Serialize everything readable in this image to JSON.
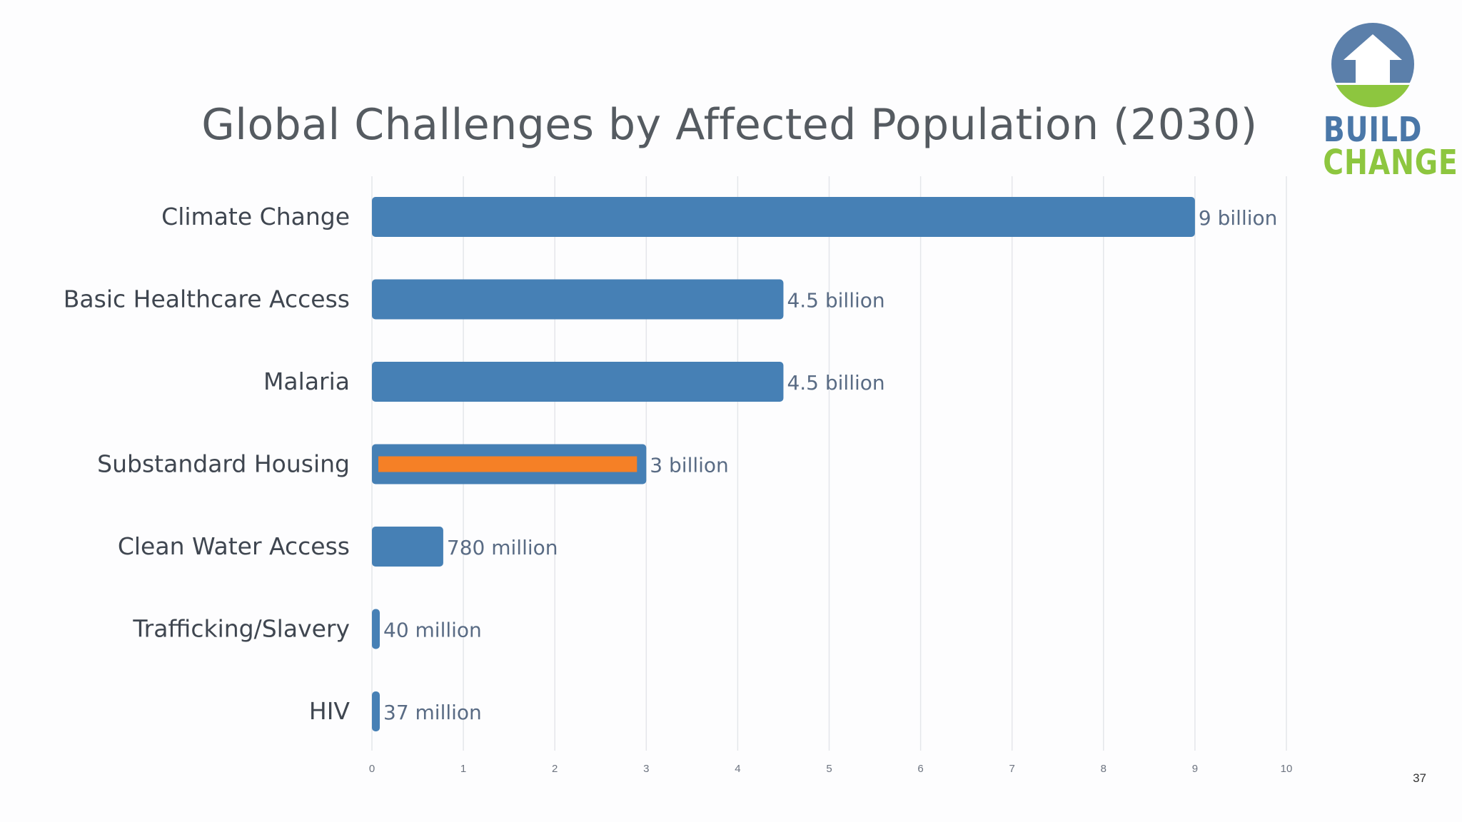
{
  "slide": {
    "page_number": "37"
  },
  "logo": {
    "line1": "BUILD",
    "line2": "CHANGE",
    "icon": "house-icon"
  },
  "colors": {
    "bar": "#4680b5",
    "highlight": "#f58026",
    "grid": "#e4e6ea",
    "label": "#3f4650",
    "value_label": "#596b84",
    "logo_blue": "#5b7faa",
    "logo_green": "#8dc63f"
  },
  "chart_data": {
    "type": "bar",
    "orientation": "horizontal",
    "title": "Global Challenges by Affected Population (2030)",
    "xlabel": "",
    "ylabel": "",
    "unit": "billions of people",
    "xlim": [
      0,
      10
    ],
    "xticks": [
      "0",
      "1",
      "2",
      "3",
      "4",
      "5",
      "6",
      "7",
      "8",
      "9",
      "10"
    ],
    "grid": true,
    "legend": "none",
    "categories": [
      "Climate Change",
      "Basic Healthcare Access",
      "Malaria",
      "Substandard Housing",
      "Clean Water Access",
      "Trafficking/Slavery",
      "HIV"
    ],
    "values": [
      9,
      4.5,
      4.5,
      3,
      0.78,
      0.04,
      0.037
    ],
    "value_labels": [
      "9 billion",
      "4.5 billion",
      "4.5 billion",
      "3 billion",
      "780 million",
      "40 million",
      "37 million"
    ],
    "highlighted_category": "Substandard Housing"
  }
}
